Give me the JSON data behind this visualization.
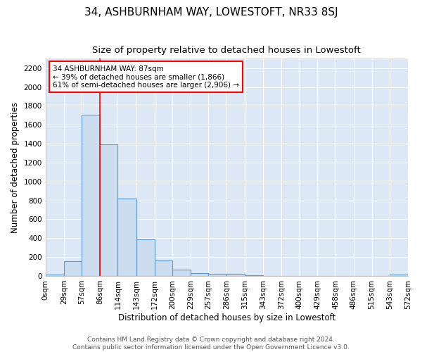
{
  "title": "34, ASHBURNHAM WAY, LOWESTOFT, NR33 8SJ",
  "subtitle": "Size of property relative to detached houses in Lowestoft",
  "xlabel": "Distribution of detached houses by size in Lowestoft",
  "ylabel": "Number of detached properties",
  "bin_edges": [
    0,
    29,
    57,
    86,
    114,
    143,
    172,
    200,
    229,
    257,
    286,
    315,
    343,
    372,
    400,
    429,
    458,
    486,
    515,
    543,
    572
  ],
  "bar_heights": [
    15,
    155,
    1710,
    1395,
    820,
    390,
    165,
    65,
    30,
    20,
    20,
    5,
    0,
    0,
    0,
    0,
    0,
    0,
    0,
    15
  ],
  "bar_color": "#ccddf0",
  "bar_edge_color": "#5b9bd5",
  "property_line_x": 86,
  "property_line_color": "red",
  "ylim": [
    0,
    2300
  ],
  "yticks": [
    0,
    200,
    400,
    600,
    800,
    1000,
    1200,
    1400,
    1600,
    1800,
    2000,
    2200
  ],
  "annotation_title": "34 ASHBURNHAM WAY: 87sqm",
  "annotation_line1": "← 39% of detached houses are smaller (1,866)",
  "annotation_line2": "61% of semi-detached houses are larger (2,906) →",
  "annotation_box_color": "white",
  "annotation_box_edge": "red",
  "footer1": "Contains HM Land Registry data © Crown copyright and database right 2024.",
  "footer2": "Contains public sector information licensed under the Open Government Licence v3.0.",
  "fig_bg_color": "#ffffff",
  "plot_bg_color": "#dce8f5",
  "grid_color": "#ffffff",
  "title_fontsize": 11,
  "subtitle_fontsize": 9.5,
  "axis_label_fontsize": 8.5,
  "tick_fontsize": 7.5,
  "footer_fontsize": 6.5,
  "annotation_fontsize": 7.5
}
